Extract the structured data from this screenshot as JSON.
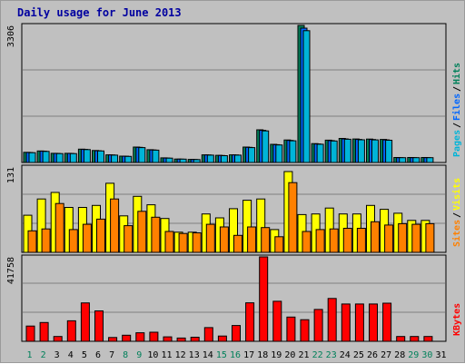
{
  "title": "Daily usage for June 2013",
  "colors": {
    "frame_bg": "#c0c0c0",
    "pages": "#00b4d8",
    "files": "#0066ff",
    "hits": "#00805a",
    "sites": "#ff8000",
    "visits": "#ffff00",
    "kbytes": "#ff0000",
    "weekend_day_label": "#00805a",
    "weekday_label": "#000000",
    "title": "#0000a0"
  },
  "chart_data": [
    {
      "type": "bar",
      "name": "pages-files-hits",
      "y_top_label": "3306",
      "ylim": [
        0,
        3306
      ],
      "grid": true,
      "legend_words": [
        "Pages",
        "Files",
        "Hits"
      ],
      "legend_separators": [
        "/",
        "/"
      ],
      "series": [
        {
          "name": "Hits",
          "values": [
            245,
            278,
            222,
            222,
            321,
            288,
            185,
            153,
            372,
            309,
            111,
            84,
            74,
            185,
            172,
            185,
            372,
            788,
            438,
            542,
            3306,
            455,
            538,
            580,
            566,
            564,
            556,
            120,
            120,
            120
          ]
        },
        {
          "name": "Files",
          "values": [
            241,
            273,
            218,
            218,
            315,
            283,
            181,
            150,
            365,
            303,
            108,
            82,
            72,
            181,
            168,
            181,
            365,
            775,
            430,
            532,
            3240,
            447,
            528,
            570,
            556,
            554,
            546,
            117,
            117,
            117
          ]
        },
        {
          "name": "Pages",
          "values": [
            236,
            268,
            214,
            214,
            310,
            278,
            178,
            146,
            359,
            298,
            106,
            80,
            70,
            178,
            165,
            178,
            359,
            762,
            423,
            523,
            3180,
            439,
            519,
            561,
            547,
            545,
            537,
            115,
            115,
            115
          ]
        }
      ]
    },
    {
      "type": "bar",
      "name": "sites-visits",
      "y_top_label": "131",
      "ylim": [
        0,
        131
      ],
      "grid": true,
      "legend_words": [
        "Sites",
        "Visits"
      ],
      "legend_separators": [
        "/"
      ],
      "series": [
        {
          "name": "Visits",
          "values": [
            57,
            82,
            92,
            69,
            69,
            72,
            106,
            56,
            86,
            73,
            52,
            31,
            31,
            59,
            53,
            67,
            80,
            82,
            35,
            124,
            58,
            59,
            68,
            59,
            59,
            72,
            66,
            60,
            49,
            49
          ]
        },
        {
          "name": "Sites",
          "values": [
            33,
            36,
            75,
            35,
            43,
            51,
            82,
            41,
            63,
            54,
            32,
            29,
            30,
            43,
            39,
            26,
            39,
            38,
            24,
            107,
            32,
            35,
            36,
            37,
            37,
            47,
            42,
            44,
            43,
            44
          ]
        }
      ]
    },
    {
      "type": "bar",
      "name": "kbytes",
      "y_top_label": "41758",
      "ylim": [
        0,
        41758
      ],
      "grid": true,
      "legend_words": [
        "KBytes"
      ],
      "legend_separators": [],
      "series": [
        {
          "name": "KBytes",
          "values": [
            7530,
            9280,
            2400,
            10130,
            18980,
            15030,
            1900,
            3000,
            4200,
            4500,
            2200,
            1600,
            2000,
            6800,
            2600,
            7800,
            19030,
            41758,
            19790,
            12000,
            10700,
            15780,
            21190,
            18450,
            18450,
            18450,
            18850,
            2400,
            2400,
            2400
          ]
        }
      ]
    }
  ],
  "days": [
    "1",
    "2",
    "3",
    "4",
    "5",
    "6",
    "7",
    "8",
    "9",
    "10",
    "11",
    "12",
    "13",
    "14",
    "15",
    "16",
    "17",
    "18",
    "19",
    "20",
    "21",
    "22",
    "23",
    "24",
    "25",
    "26",
    "27",
    "28",
    "29",
    "30",
    "31"
  ],
  "weekend_days": [
    "1",
    "2",
    "8",
    "9",
    "15",
    "16",
    "22",
    "23",
    "29",
    "30"
  ]
}
